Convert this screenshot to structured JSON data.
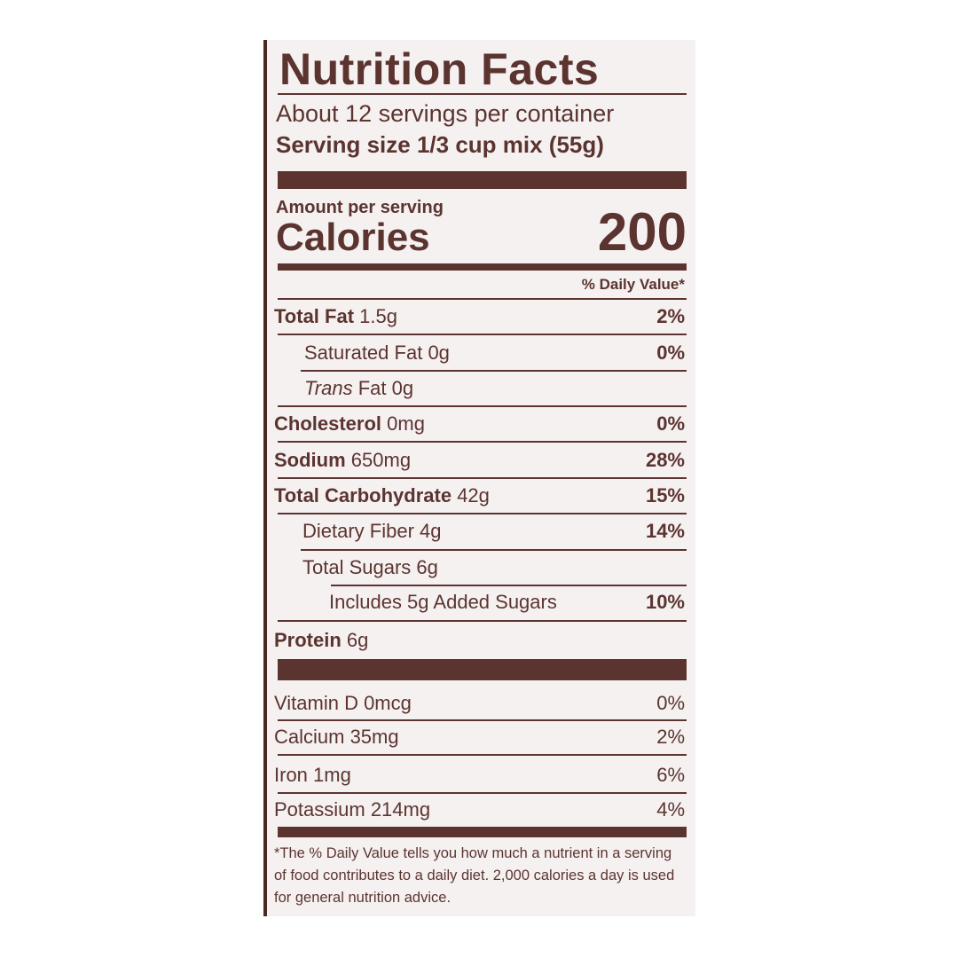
{
  "title": "Nutrition Facts",
  "servings_per_container": "About 12 servings per container",
  "serving_size_label": "Serving size",
  "serving_size_value": "1/3 cup mix (55g)",
  "amount_per_serving": "Amount per serving",
  "calories_label": "Calories",
  "calories_value": "200",
  "daily_value_header": "% Daily Value*",
  "nutrients": [
    {
      "name": "Total Fat",
      "amount": "1.5g",
      "dv": "2%"
    },
    {
      "name": "Saturated Fat",
      "amount": "0g",
      "dv": "0%"
    },
    {
      "name": "Trans",
      "amount": "Fat 0g",
      "dv": ""
    },
    {
      "name": "Cholesterol",
      "amount": "0mg",
      "dv": "0%"
    },
    {
      "name": "Sodium",
      "amount": "650mg",
      "dv": "28%"
    },
    {
      "name": "Total Carbohydrate",
      "amount": "42g",
      "dv": "15%"
    },
    {
      "name": "Dietary Fiber",
      "amount": "4g",
      "dv": "14%"
    },
    {
      "name": "Total Sugars",
      "amount": "6g",
      "dv": ""
    },
    {
      "name": "Includes 5g Added Sugars",
      "amount": "",
      "dv": "10%"
    },
    {
      "name": "Protein",
      "amount": "6g",
      "dv": ""
    }
  ],
  "vitamins": [
    {
      "label": "Vitamin D 0mcg",
      "dv": "0%"
    },
    {
      "label": "Calcium 35mg",
      "dv": "2%"
    },
    {
      "label": "Iron 1mg",
      "dv": "6%"
    },
    {
      "label": "Potassium 214mg",
      "dv": "4%"
    }
  ],
  "footnote": "*The % Daily Value tells you how much a nutrient in a serving of food contributes to a daily diet. 2,000 calories a day is used for general nutrition advice.",
  "colors": {
    "ink": "#5b3430",
    "background": "#f6f1f1"
  }
}
